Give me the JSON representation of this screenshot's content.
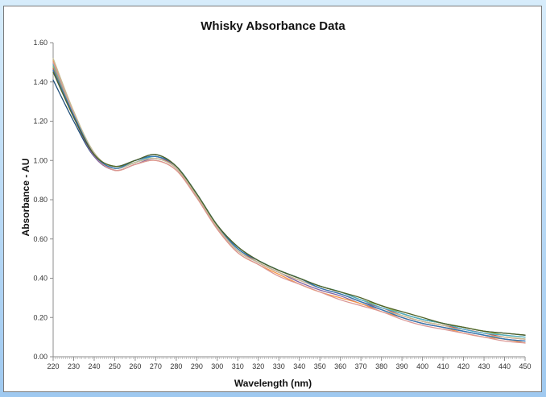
{
  "chart_data": {
    "type": "line",
    "title": "Whisky Absorbance Data",
    "xlabel": "Wavelength (nm)",
    "ylabel": "Absorbance - AU",
    "xlim": [
      220,
      450
    ],
    "ylim": [
      0,
      1.6
    ],
    "x_ticks": [
      "220",
      "230",
      "240",
      "250",
      "260",
      "270",
      "280",
      "290",
      "300",
      "310",
      "320",
      "330",
      "340",
      "350",
      "360",
      "370",
      "380",
      "390",
      "400",
      "410",
      "420",
      "430",
      "440",
      "450"
    ],
    "y_ticks": [
      "0.00",
      "0.20",
      "0.40",
      "0.60",
      "0.80",
      "1.00",
      "1.20",
      "1.40",
      "1.60"
    ],
    "grid": false,
    "legend": "none",
    "x": [
      220,
      230,
      240,
      250,
      260,
      270,
      280,
      290,
      300,
      310,
      320,
      330,
      340,
      350,
      360,
      370,
      380,
      390,
      400,
      410,
      420,
      430,
      440,
      450
    ],
    "series": [
      {
        "color": "#1f4e79",
        "values": [
          1.41,
          1.2,
          1.02,
          0.97,
          1.0,
          1.03,
          0.97,
          0.83,
          0.67,
          0.56,
          0.49,
          0.44,
          0.4,
          0.36,
          0.33,
          0.29,
          0.26,
          0.22,
          0.19,
          0.17,
          0.15,
          0.13,
          0.12,
          0.11
        ]
      },
      {
        "color": "#c0504d",
        "values": [
          1.47,
          1.23,
          1.03,
          0.96,
          0.99,
          1.02,
          0.96,
          0.82,
          0.66,
          0.55,
          0.48,
          0.43,
          0.39,
          0.35,
          0.32,
          0.28,
          0.25,
          0.21,
          0.18,
          0.16,
          0.14,
          0.12,
          0.1,
          0.09
        ]
      },
      {
        "color": "#9bbb59",
        "values": [
          1.48,
          1.24,
          1.03,
          0.97,
          0.99,
          1.02,
          0.97,
          0.83,
          0.67,
          0.55,
          0.49,
          0.44,
          0.4,
          0.36,
          0.33,
          0.29,
          0.26,
          0.22,
          0.19,
          0.17,
          0.15,
          0.13,
          0.11,
          0.1
        ]
      },
      {
        "color": "#8064a2",
        "values": [
          1.46,
          1.22,
          1.02,
          0.95,
          0.98,
          1.01,
          0.96,
          0.82,
          0.66,
          0.54,
          0.48,
          0.43,
          0.38,
          0.34,
          0.31,
          0.27,
          0.24,
          0.2,
          0.17,
          0.15,
          0.13,
          0.11,
          0.09,
          0.08
        ]
      },
      {
        "color": "#4bacc6",
        "values": [
          1.49,
          1.24,
          1.03,
          0.96,
          0.99,
          1.02,
          0.97,
          0.83,
          0.67,
          0.55,
          0.49,
          0.44,
          0.4,
          0.36,
          0.33,
          0.29,
          0.25,
          0.22,
          0.19,
          0.17,
          0.14,
          0.12,
          0.11,
          0.1
        ]
      },
      {
        "color": "#f79646",
        "values": [
          1.51,
          1.25,
          1.03,
          0.95,
          0.98,
          1.0,
          0.95,
          0.81,
          0.65,
          0.53,
          0.47,
          0.42,
          0.37,
          0.33,
          0.3,
          0.27,
          0.23,
          0.2,
          0.17,
          0.15,
          0.12,
          0.1,
          0.09,
          0.07
        ]
      },
      {
        "color": "#d99694",
        "values": [
          1.5,
          1.24,
          1.03,
          0.95,
          0.98,
          1.0,
          0.95,
          0.81,
          0.65,
          0.53,
          0.47,
          0.41,
          0.37,
          0.33,
          0.29,
          0.26,
          0.23,
          0.19,
          0.16,
          0.14,
          0.12,
          0.1,
          0.08,
          0.07
        ]
      },
      {
        "color": "#c4bd97",
        "values": [
          1.52,
          1.25,
          1.04,
          0.96,
          0.99,
          1.01,
          0.96,
          0.82,
          0.66,
          0.54,
          0.48,
          0.43,
          0.39,
          0.35,
          0.32,
          0.28,
          0.24,
          0.21,
          0.18,
          0.16,
          0.13,
          0.11,
          0.1,
          0.09
        ]
      },
      {
        "color": "#2e75b6",
        "values": [
          1.46,
          1.23,
          1.03,
          0.96,
          1.0,
          1.02,
          0.97,
          0.83,
          0.67,
          0.55,
          0.49,
          0.44,
          0.4,
          0.35,
          0.32,
          0.28,
          0.24,
          0.2,
          0.17,
          0.15,
          0.13,
          0.11,
          0.09,
          0.08
        ]
      },
      {
        "color": "#4f6228",
        "values": [
          1.45,
          1.22,
          1.03,
          0.97,
          1.0,
          1.03,
          0.97,
          0.83,
          0.67,
          0.56,
          0.49,
          0.44,
          0.4,
          0.36,
          0.33,
          0.3,
          0.26,
          0.23,
          0.2,
          0.17,
          0.15,
          0.13,
          0.12,
          0.11
        ]
      }
    ]
  }
}
